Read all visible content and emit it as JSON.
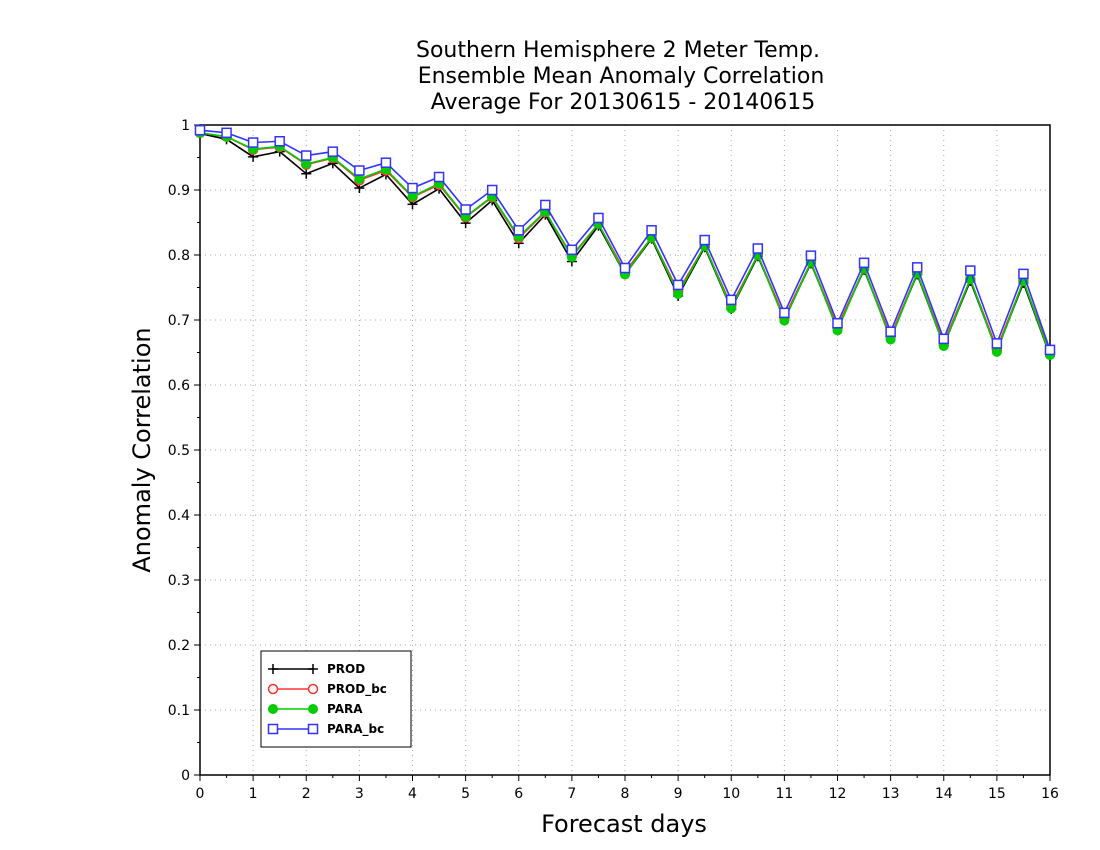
{
  "chart_data": {
    "type": "line",
    "title_lines": [
      "Southern Hemisphere 2 Meter Temp.",
      "Ensemble Mean Anomaly Correlation",
      "Average For 20130615 - 20140615"
    ],
    "xlabel": "Forecast days",
    "ylabel": "Anomaly Correlation",
    "xlim": [
      0,
      16
    ],
    "ylim": [
      0,
      1
    ],
    "xticks": [
      "0",
      "1",
      "2",
      "3",
      "4",
      "5",
      "6",
      "7",
      "8",
      "9",
      "10",
      "11",
      "12",
      "13",
      "14",
      "15",
      "16"
    ],
    "yticks": [
      "0",
      "0.1",
      "0.2",
      "0.3",
      "0.4",
      "0.5",
      "0.6",
      "0.7",
      "0.8",
      "0.9",
      "1"
    ],
    "grid": true,
    "legend_position": "bottom-left",
    "x": [
      0,
      0.5,
      1,
      1.5,
      2,
      2.5,
      3,
      3.5,
      4,
      4.5,
      5,
      5.5,
      6,
      6.5,
      7,
      7.5,
      8,
      8.5,
      9,
      9.5,
      10,
      10.5,
      11,
      11.5,
      12,
      12.5,
      13,
      13.5,
      14,
      14.5,
      15,
      15.5,
      16
    ],
    "series": [
      {
        "name": "PROD",
        "color": "#000000",
        "marker": "plus",
        "values": [
          0.987,
          0.978,
          0.951,
          0.959,
          0.925,
          0.941,
          0.903,
          0.924,
          0.878,
          0.902,
          0.849,
          0.884,
          0.818,
          0.862,
          0.79,
          0.845,
          0.77,
          0.825,
          0.737,
          0.812,
          0.717,
          0.798,
          0.702,
          0.787,
          0.688,
          0.777,
          0.674,
          0.77,
          0.661,
          0.76,
          0.653,
          0.757,
          0.645
        ]
      },
      {
        "name": "PROD_bc",
        "color": "#ff3333",
        "marker": "open-circle",
        "values": [
          0.988,
          0.982,
          0.962,
          0.966,
          0.939,
          0.949,
          0.915,
          0.93,
          0.889,
          0.908,
          0.858,
          0.889,
          0.826,
          0.866,
          0.799,
          0.848,
          0.774,
          0.827,
          0.744,
          0.814,
          0.722,
          0.8,
          0.704,
          0.789,
          0.689,
          0.779,
          0.675,
          0.772,
          0.665,
          0.763,
          0.656,
          0.76,
          0.65
        ]
      },
      {
        "name": "PARA",
        "color": "#00cc00",
        "marker": "filled-circle",
        "values": [
          0.988,
          0.982,
          0.963,
          0.967,
          0.94,
          0.95,
          0.917,
          0.932,
          0.89,
          0.91,
          0.859,
          0.89,
          0.828,
          0.867,
          0.797,
          0.848,
          0.77,
          0.827,
          0.74,
          0.814,
          0.718,
          0.8,
          0.699,
          0.789,
          0.684,
          0.779,
          0.67,
          0.772,
          0.66,
          0.763,
          0.651,
          0.76,
          0.646
        ]
      },
      {
        "name": "PARA_bc",
        "color": "#3333ff",
        "marker": "open-square",
        "values": [
          0.992,
          0.988,
          0.973,
          0.975,
          0.953,
          0.959,
          0.93,
          0.942,
          0.903,
          0.92,
          0.87,
          0.9,
          0.838,
          0.877,
          0.808,
          0.857,
          0.78,
          0.838,
          0.754,
          0.823,
          0.731,
          0.81,
          0.711,
          0.799,
          0.695,
          0.788,
          0.682,
          0.781,
          0.671,
          0.776,
          0.664,
          0.771,
          0.654
        ]
      }
    ]
  }
}
